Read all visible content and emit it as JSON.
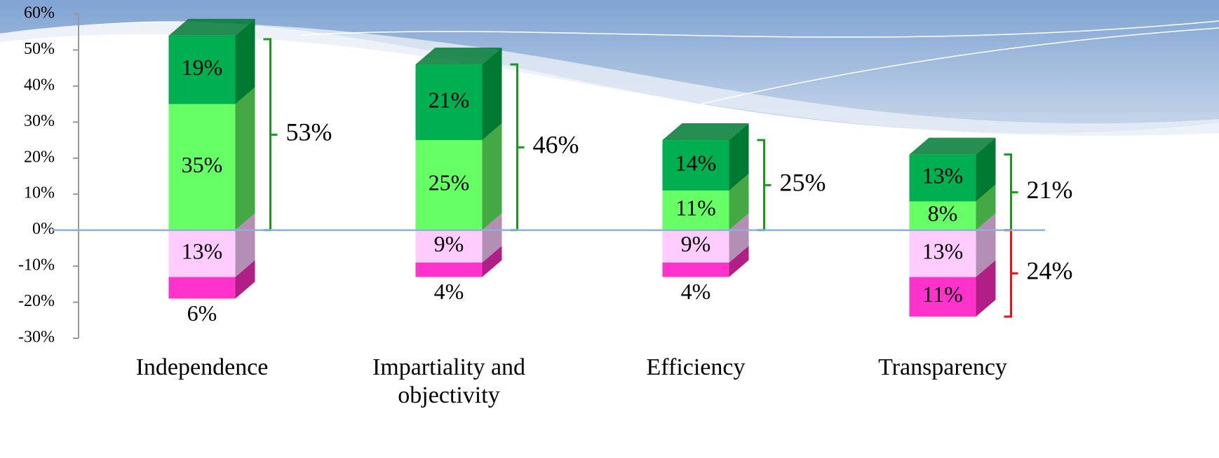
{
  "chart_data": {
    "type": "stacked_bar_3d",
    "categories": [
      "Independence",
      "Impartiality and objectivity",
      "Efficiency",
      "Transparency"
    ],
    "series": [
      {
        "color": "#66ff66",
        "side_color": "#44a844",
        "values": [
          35,
          25,
          11,
          8
        ],
        "value_labels": [
          "35%",
          "25%",
          "11%",
          "8%"
        ]
      },
      {
        "color": "#00b050",
        "side_color": "#007a33",
        "values": [
          19,
          21,
          14,
          13
        ],
        "value_labels": [
          "19%",
          "21%",
          "14%",
          "13%"
        ]
      },
      {
        "color": "#ffccff",
        "side_color": "#b48fb4",
        "values": [
          -13,
          -9,
          -9,
          -13
        ],
        "value_labels": [
          "13%",
          "9%",
          "9%",
          "13%"
        ]
      },
      {
        "color": "#ff33cc",
        "side_color": "#b01f86",
        "values": [
          -6,
          -4,
          -4,
          -11
        ],
        "value_labels": [
          "6%",
          "4%",
          "4%",
          "11%"
        ]
      }
    ],
    "totals": {
      "color": "#1a9a1a",
      "values": [
        53,
        46,
        25,
        21
      ],
      "value_labels": [
        "53%",
        "46%",
        "25%",
        "21%"
      ]
    },
    "negative_totals": {
      "color": "#ee1111",
      "values": [
        null,
        null,
        null,
        -24
      ],
      "value_labels": [
        null,
        null,
        null,
        "24%"
      ]
    },
    "ylim": [
      -30,
      60
    ],
    "yticks": [
      {
        "value": -30,
        "label": "-30%"
      },
      {
        "value": -20,
        "label": "-20%"
      },
      {
        "value": -10,
        "label": "-10%"
      },
      {
        "value": 0,
        "label": "0%"
      },
      {
        "value": 10,
        "label": "10%"
      },
      {
        "value": 20,
        "label": "20%"
      },
      {
        "value": 30,
        "label": "30%"
      },
      {
        "value": 40,
        "label": "40%"
      },
      {
        "value": 50,
        "label": "50%"
      },
      {
        "value": 60,
        "label": "60%"
      }
    ],
    "grid": false
  }
}
